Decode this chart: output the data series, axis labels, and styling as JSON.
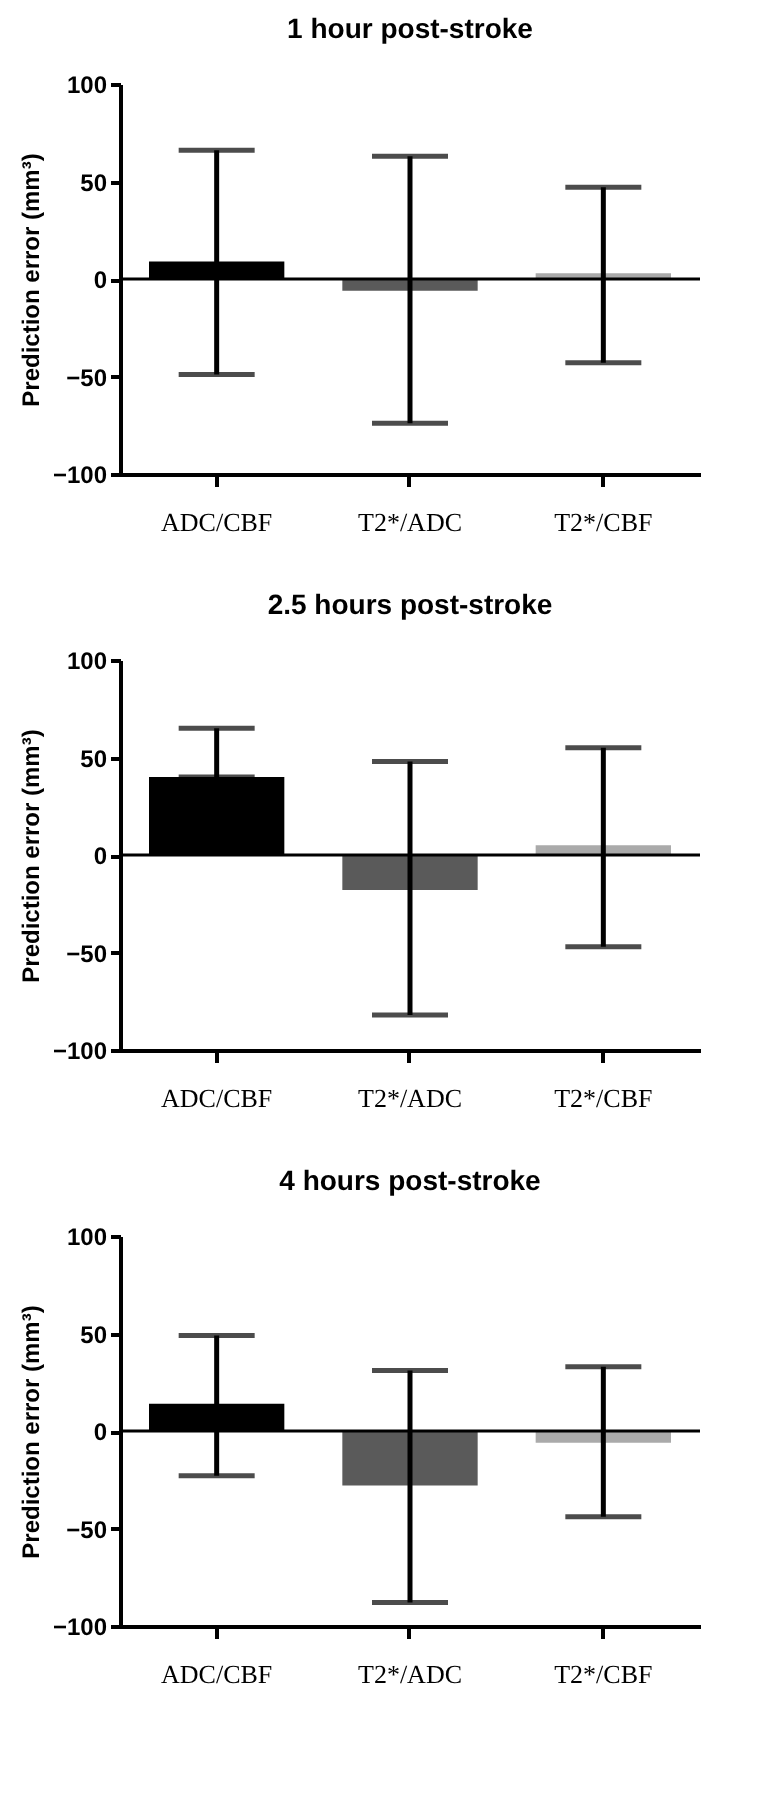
{
  "chart_data": [
    {
      "type": "bar",
      "title": "1 hour post-stroke",
      "ylabel": "Prediction error (mm³)",
      "categories": [
        "ADC/CBF",
        "T2*/ADC",
        "T2*/CBF"
      ],
      "values": [
        9,
        -6,
        3
      ],
      "colors": [
        "#000000",
        "#5a5a5a",
        "#aaaaaa"
      ],
      "errors": [
        [
          -49,
          66
        ],
        [
          -74,
          63
        ],
        [
          -43,
          47
        ]
      ],
      "ylim": [
        -100,
        100
      ],
      "yticks": [
        -100,
        -50,
        0,
        50,
        100
      ],
      "grid": false,
      "ref_lines": [
        {
          "axis": "y",
          "value": 0
        }
      ]
    },
    {
      "type": "bar",
      "title": "2.5 hours post-stroke",
      "ylabel": "Prediction error (mm³)",
      "categories": [
        "ADC/CBF",
        "T2*/ADC",
        "T2*/CBF"
      ],
      "values": [
        40,
        -18,
        5
      ],
      "colors": [
        "#000000",
        "#5a5a5a",
        "#aaaaaa"
      ],
      "errors": [
        [
          40,
          65
        ],
        [
          -82,
          48
        ],
        [
          -47,
          55
        ]
      ],
      "ylim": [
        -100,
        100
      ],
      "yticks": [
        -100,
        -50,
        0,
        50,
        100
      ],
      "grid": false,
      "ref_lines": [
        {
          "axis": "y",
          "value": 0
        }
      ]
    },
    {
      "type": "bar",
      "title": "4 hours post-stroke",
      "ylabel": "Prediction error (mm³)",
      "categories": [
        "ADC/CBF",
        "T2*/ADC",
        "T2*/CBF"
      ],
      "values": [
        14,
        -28,
        -6
      ],
      "colors": [
        "#000000",
        "#5a5a5a",
        "#aaaaaa"
      ],
      "errors": [
        [
          -23,
          49
        ],
        [
          -88,
          31
        ],
        [
          -44,
          33
        ]
      ],
      "ylim": [
        -100,
        100
      ],
      "yticks": [
        -100,
        -50,
        0,
        50,
        100
      ],
      "grid": false,
      "ref_lines": [
        {
          "axis": "y",
          "value": 0
        }
      ]
    }
  ]
}
